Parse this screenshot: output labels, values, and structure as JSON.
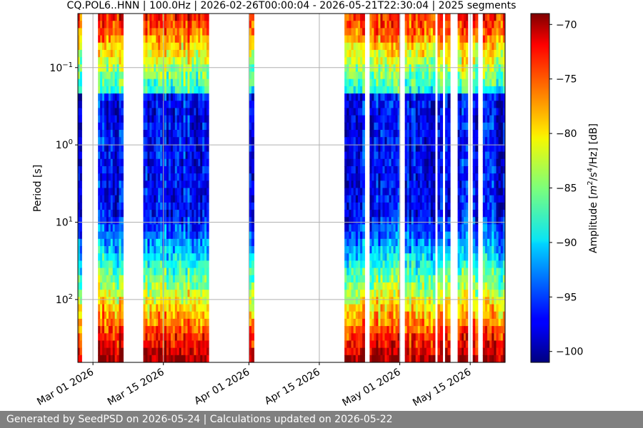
{
  "chart_data": {
    "type": "heatmap",
    "title": "CQ.POL6..HNN | 100.0Hz | 2026-02-26T00:00:04 - 2026-05-21T22:30:04 | 2025 segments",
    "xlabel": "",
    "ylabel": "Period [s]",
    "x_ticks": [
      "Mar 01 2026",
      "Mar 15 2026",
      "Apr 01 2026",
      "Apr 15 2026",
      "May 01 2026",
      "May 15 2026"
    ],
    "x_tick_dates": [
      "2026-03-01",
      "2026-03-15",
      "2026-04-01",
      "2026-04-15",
      "2026-05-01",
      "2026-05-15"
    ],
    "xlim": [
      "2026-02-26",
      "2026-05-21T22:30:04"
    ],
    "y_scale": "log",
    "y_inverted": true,
    "ylim": [
      0.02,
      650
    ],
    "y_ticks": [
      {
        "value": 0.1,
        "base": "10",
        "exp": "−1"
      },
      {
        "value": 1,
        "base": "10",
        "exp": "0"
      },
      {
        "value": 10,
        "base": "10",
        "exp": "1"
      },
      {
        "value": 100,
        "base": "10",
        "exp": "2"
      }
    ],
    "grid": true,
    "colorbar": {
      "label_prefix": "Amplitude [",
      "label_m": "m",
      "label_exp1": "2",
      "label_mid": "/s",
      "label_exp2": "4",
      "label_suffix": "/Hz] [dB]",
      "min": -101,
      "max": -69,
      "ticks": [
        "−70",
        "−75",
        "−80",
        "−85",
        "−90",
        "−95",
        "−100"
      ],
      "tick_values": [
        -70,
        -75,
        -80,
        -85,
        -90,
        -95,
        -100
      ],
      "colormap": "jet"
    },
    "data_periods": [
      {
        "start": "2026-02-26",
        "end": "2026-02-26T18:00"
      },
      {
        "start": "2026-03-02",
        "end": "2026-03-07"
      },
      {
        "start": "2026-03-11",
        "end": "2026-03-24"
      },
      {
        "start": "2026-04-01",
        "end": "2026-04-02"
      },
      {
        "start": "2026-04-20",
        "end": "2026-04-24"
      },
      {
        "start": "2026-04-25",
        "end": "2026-05-01"
      },
      {
        "start": "2026-05-02",
        "end": "2026-05-08"
      },
      {
        "start": "2026-05-08T12:00",
        "end": "2026-05-09T12:00"
      },
      {
        "start": "2026-05-10",
        "end": "2026-05-11"
      },
      {
        "start": "2026-05-12T12:00",
        "end": "2026-05-14T12:00"
      },
      {
        "start": "2026-05-15T12:00",
        "end": "2026-05-16T12:00"
      },
      {
        "start": "2026-05-17T12:00",
        "end": "2026-05-21T22:30"
      }
    ]
  },
  "footer": {
    "text": "Generated by SeedPSD on 2026-05-24 | Calculations updated on 2026-05-22"
  }
}
